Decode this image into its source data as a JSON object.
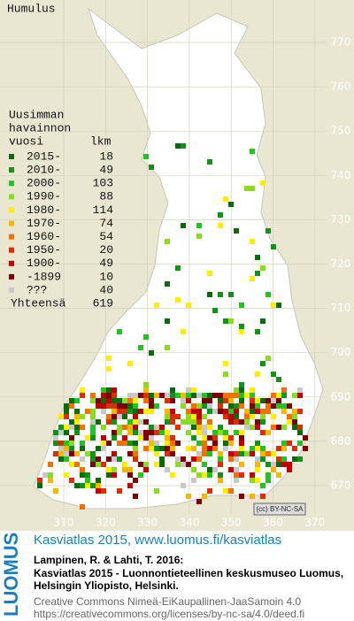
{
  "title": "Humulus",
  "legend": {
    "heading": [
      "Uusimman",
      "havainnon"
    ],
    "columns": [
      "vuosi",
      "lkm"
    ],
    "rows": [
      {
        "label": "2015-",
        "count": 18,
        "color": "#0b6b0b"
      },
      {
        "label": "2010-",
        "count": 49,
        "color": "#13921a"
      },
      {
        "label": "2000-",
        "count": 103,
        "color": "#22c322"
      },
      {
        "label": "1990-",
        "count": 88,
        "color": "#88dd22"
      },
      {
        "label": "1980-",
        "count": 114,
        "color": "#ffee00"
      },
      {
        "label": "1970-",
        "count": 74,
        "color": "#f5b800"
      },
      {
        "label": "1960-",
        "count": 54,
        "color": "#f07000"
      },
      {
        "label": "1950-",
        "count": 20,
        "color": "#d83000"
      },
      {
        "label": "1900-",
        "count": 49,
        "color": "#c00000"
      },
      {
        "label": "-1899",
        "count": 10,
        "color": "#7a0000"
      },
      {
        "label": "???",
        "count": 40,
        "color": "#c8c8c8"
      }
    ],
    "total_label": "Yhteensä",
    "total": 619
  },
  "grid": {
    "y_labels": [
      770,
      760,
      750,
      740,
      730,
      720,
      710,
      700,
      690,
      680,
      670
    ],
    "x_labels": [
      310,
      320,
      330,
      340,
      350,
      360,
      370
    ]
  },
  "license_badge": "(cc) BY-NC-SA",
  "footer": {
    "logo": "LUOMUS",
    "link": "Kasviatlas 2015, www.luomus.fi/kasviatlas",
    "citation": [
      "Lampinen, R. & Lahti, T. 2016:",
      "Kasviatlas 2015 - Luonnontieteellinen keskusmuseo Luomus,",
      "Helsingin Yliopisto, Helsinki."
    ],
    "license": [
      "Creative Commons Nimeä-EiKaupallinen-JaaSamoin 4.0",
      "https://creativecommons.org/licenses/by-nc-sa/4.0/deed.fi"
    ]
  }
}
